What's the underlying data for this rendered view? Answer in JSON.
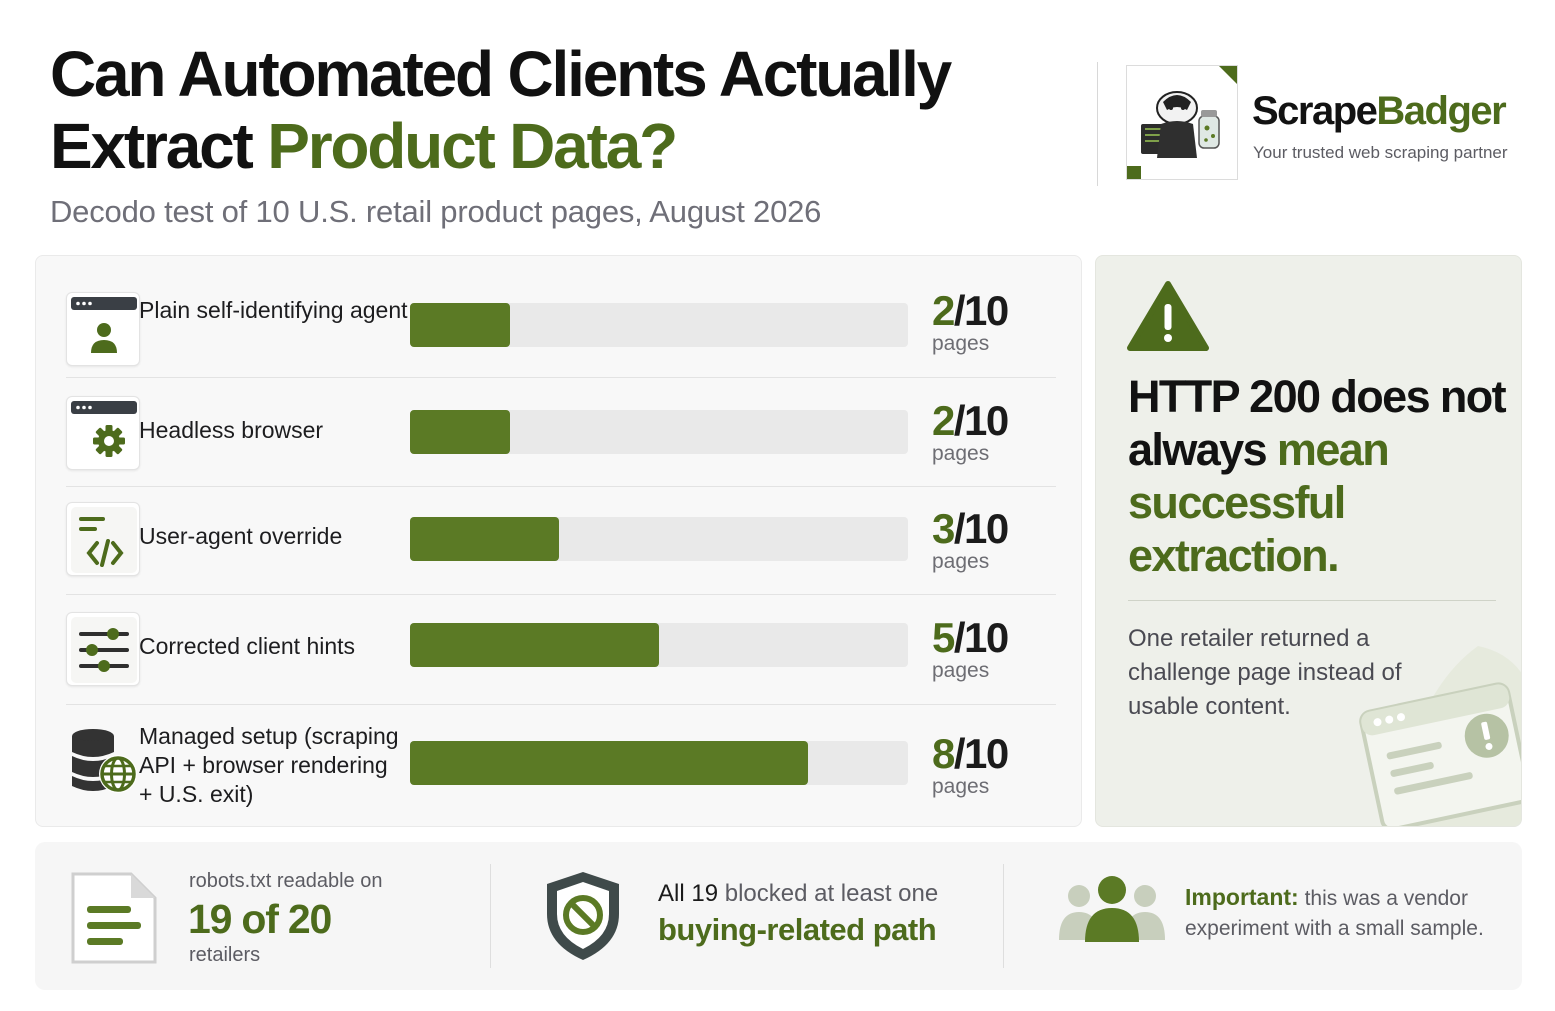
{
  "header": {
    "title_line1": "Can Automated Clients Actually",
    "title_line2_dark": "Extract",
    "title_line2_accent": "Product Data?",
    "subtitle": "Decodo test of 10 U.S. retail product pages, August 2026"
  },
  "brand": {
    "name_part1": "Scrape",
    "name_part2": "Badger",
    "tagline": "Your trusted web scraping partner",
    "logo_icon": "badger-at-computer-icon"
  },
  "chart_data": {
    "type": "bar",
    "orientation": "horizontal",
    "categories": [
      "Plain self-identifying agent",
      "Headless browser",
      "User-agent override",
      "Corrected client hints",
      "Managed setup (scraping API + browser rendering + U.S. exit)"
    ],
    "values": [
      2,
      2,
      3,
      5,
      8
    ],
    "xlim": [
      0,
      10
    ],
    "unit": "pages",
    "denominator": 10,
    "colors": {
      "fill": "#5b7a25",
      "track": "#e9e9e9",
      "accent": "#4d6b1c"
    },
    "icons": [
      "browser-user-icon",
      "browser-gear-icon",
      "code-document-icon",
      "sliders-icon",
      "database-globe-icon"
    ]
  },
  "rows": [
    {
      "label": "Plain self-identifying agent",
      "num": "2",
      "den": "/10",
      "unit": "pages"
    },
    {
      "label": "Headless browser",
      "num": "2",
      "den": "/10",
      "unit": "pages"
    },
    {
      "label": "User-agent override",
      "num": "3",
      "den": "/10",
      "unit": "pages"
    },
    {
      "label": "Corrected client hints",
      "num": "5",
      "den": "/10",
      "unit": "pages"
    },
    {
      "label": "Managed setup (scraping API + browser rendering + U.S. exit)",
      "num": "8",
      "den": "/10",
      "unit": "pages"
    }
  ],
  "warning": {
    "icon": "warning-triangle-icon",
    "head_part1": "HTTP 200 does",
    "head_part2": "not always",
    "head_part3": "mean successful extraction.",
    "body": "One retailer returned a challenge page instead of usable content."
  },
  "stats": {
    "robots": {
      "icon": "document-lines-icon",
      "line1": "robots.txt readable on",
      "value": "19 of 20",
      "line3": "retailers"
    },
    "blocked": {
      "icon": "shield-blocked-icon",
      "lead": "All 19",
      "rest": "blocked at least one",
      "value": "buying-related path"
    },
    "note": {
      "icon": "people-group-icon",
      "label": "Important:",
      "text": "this was a vendor experiment with a small sample."
    }
  }
}
